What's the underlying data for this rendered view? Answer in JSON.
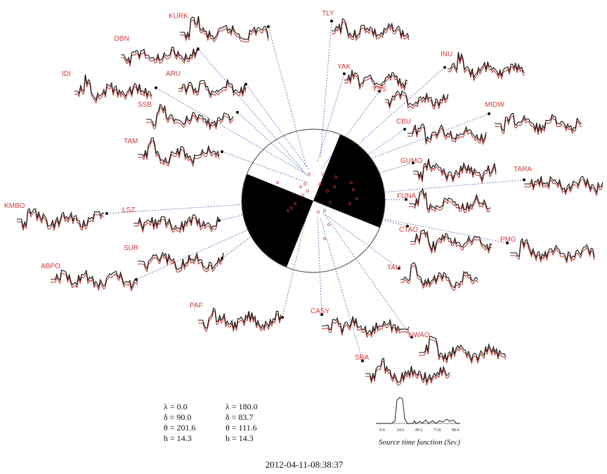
{
  "stations": [
    {
      "label": "TLY"
    },
    {
      "label": "KURK"
    },
    {
      "label": "OBN"
    },
    {
      "label": "YAK"
    },
    {
      "label": "INU"
    },
    {
      "label": "YSS"
    },
    {
      "label": "ARU"
    },
    {
      "label": "IDI"
    },
    {
      "label": "SSB"
    },
    {
      "label": "MIDW"
    },
    {
      "label": "CBU"
    },
    {
      "label": "TAM"
    },
    {
      "label": "GUMO"
    },
    {
      "label": "TARA"
    },
    {
      "label": "FUNA"
    },
    {
      "label": "KMBO"
    },
    {
      "label": "LSZ"
    },
    {
      "label": "CTAO"
    },
    {
      "label": "PMG"
    },
    {
      "label": "SUR"
    },
    {
      "label": "ABPO"
    },
    {
      "label": "TAU"
    },
    {
      "label": "PAF"
    },
    {
      "label": "CASY"
    },
    {
      "label": "NWAO"
    },
    {
      "label": "SBA"
    }
  ],
  "mechanism": {
    "plane1": {
      "lambda": "λ = 0.0",
      "delta": "δ = 90.0",
      "theta": "θ = 201.6",
      "h": "h = 14.3"
    },
    "plane2": {
      "lambda": "λ = 180.0",
      "delta": "δ = 83.7",
      "theta": "θ = 111.6",
      "h": "h = 14.3"
    }
  },
  "source_time_function": {
    "ticks": [
      "0.0",
      "24.6",
      "49.2",
      "73.8",
      "98.4"
    ],
    "caption": "Source time function (Sec)"
  },
  "event_datetime": "2012-04-11-08:38:37",
  "colors": {
    "observed": "#111111",
    "synthetic": "#b0302a",
    "label": "#d63a3a",
    "ray": "#4d5fb4",
    "compression": "#000000"
  }
}
